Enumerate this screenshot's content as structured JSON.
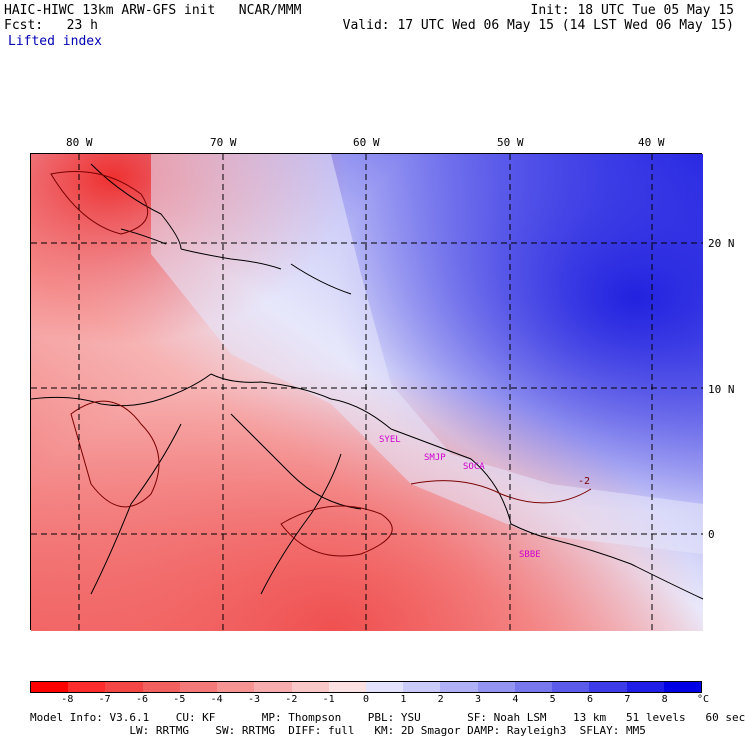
{
  "header": {
    "title_left": "HAIC-HIWC 13km ARW-GFS init   NCAR/MMM",
    "fcst_label": "Fcst:   23 h",
    "field_name": "Lifted index",
    "init_time": "Init: 18 UTC Tue 05 May 15",
    "valid_time": "Valid: 17 UTC Wed 06 May 15 (14 LST Wed 06 May 15)"
  },
  "map": {
    "longitude_labels": [
      "80 W",
      "70 W",
      "60 W",
      "50 W",
      "40 W"
    ],
    "latitude_labels": [
      "20 N",
      "10 N",
      "0"
    ],
    "stations": [
      "SYEL",
      "SMJP",
      "SOCA",
      "SBBE"
    ],
    "contour_label": "-2"
  },
  "colorbar": {
    "tick_labels": [
      "-8",
      "-7",
      "-6",
      "-5",
      "-4",
      "-3",
      "-2",
      "-1",
      "0",
      "1",
      "2",
      "3",
      "4",
      "5",
      "6",
      "7",
      "8"
    ],
    "unit": "°C",
    "colors": [
      "#ff0000",
      "#ff2c2c",
      "#f54646",
      "#f26060",
      "#f47979",
      "#f69393",
      "#f7adad",
      "#f9c7c7",
      "#fbe1e1",
      "#e3e3ff",
      "#cbcbfb",
      "#b0b0f6",
      "#9494f2",
      "#7878ee",
      "#5a5aeb",
      "#3c3ce8",
      "#1e1ee6",
      "#0000e6"
    ]
  },
  "footer": {
    "line1": "Model Info: V3.6.1    CU: KF       MP: Thompson    PBL: YSU       SF: Noah LSM    13 km   51 levels   60 sec",
    "line2": "               LW: RRTMG    SW: RRTMG  DIFF: full   KM: 2D Smagor DAMP: Rayleigh3  SFLAY: MM5"
  }
}
